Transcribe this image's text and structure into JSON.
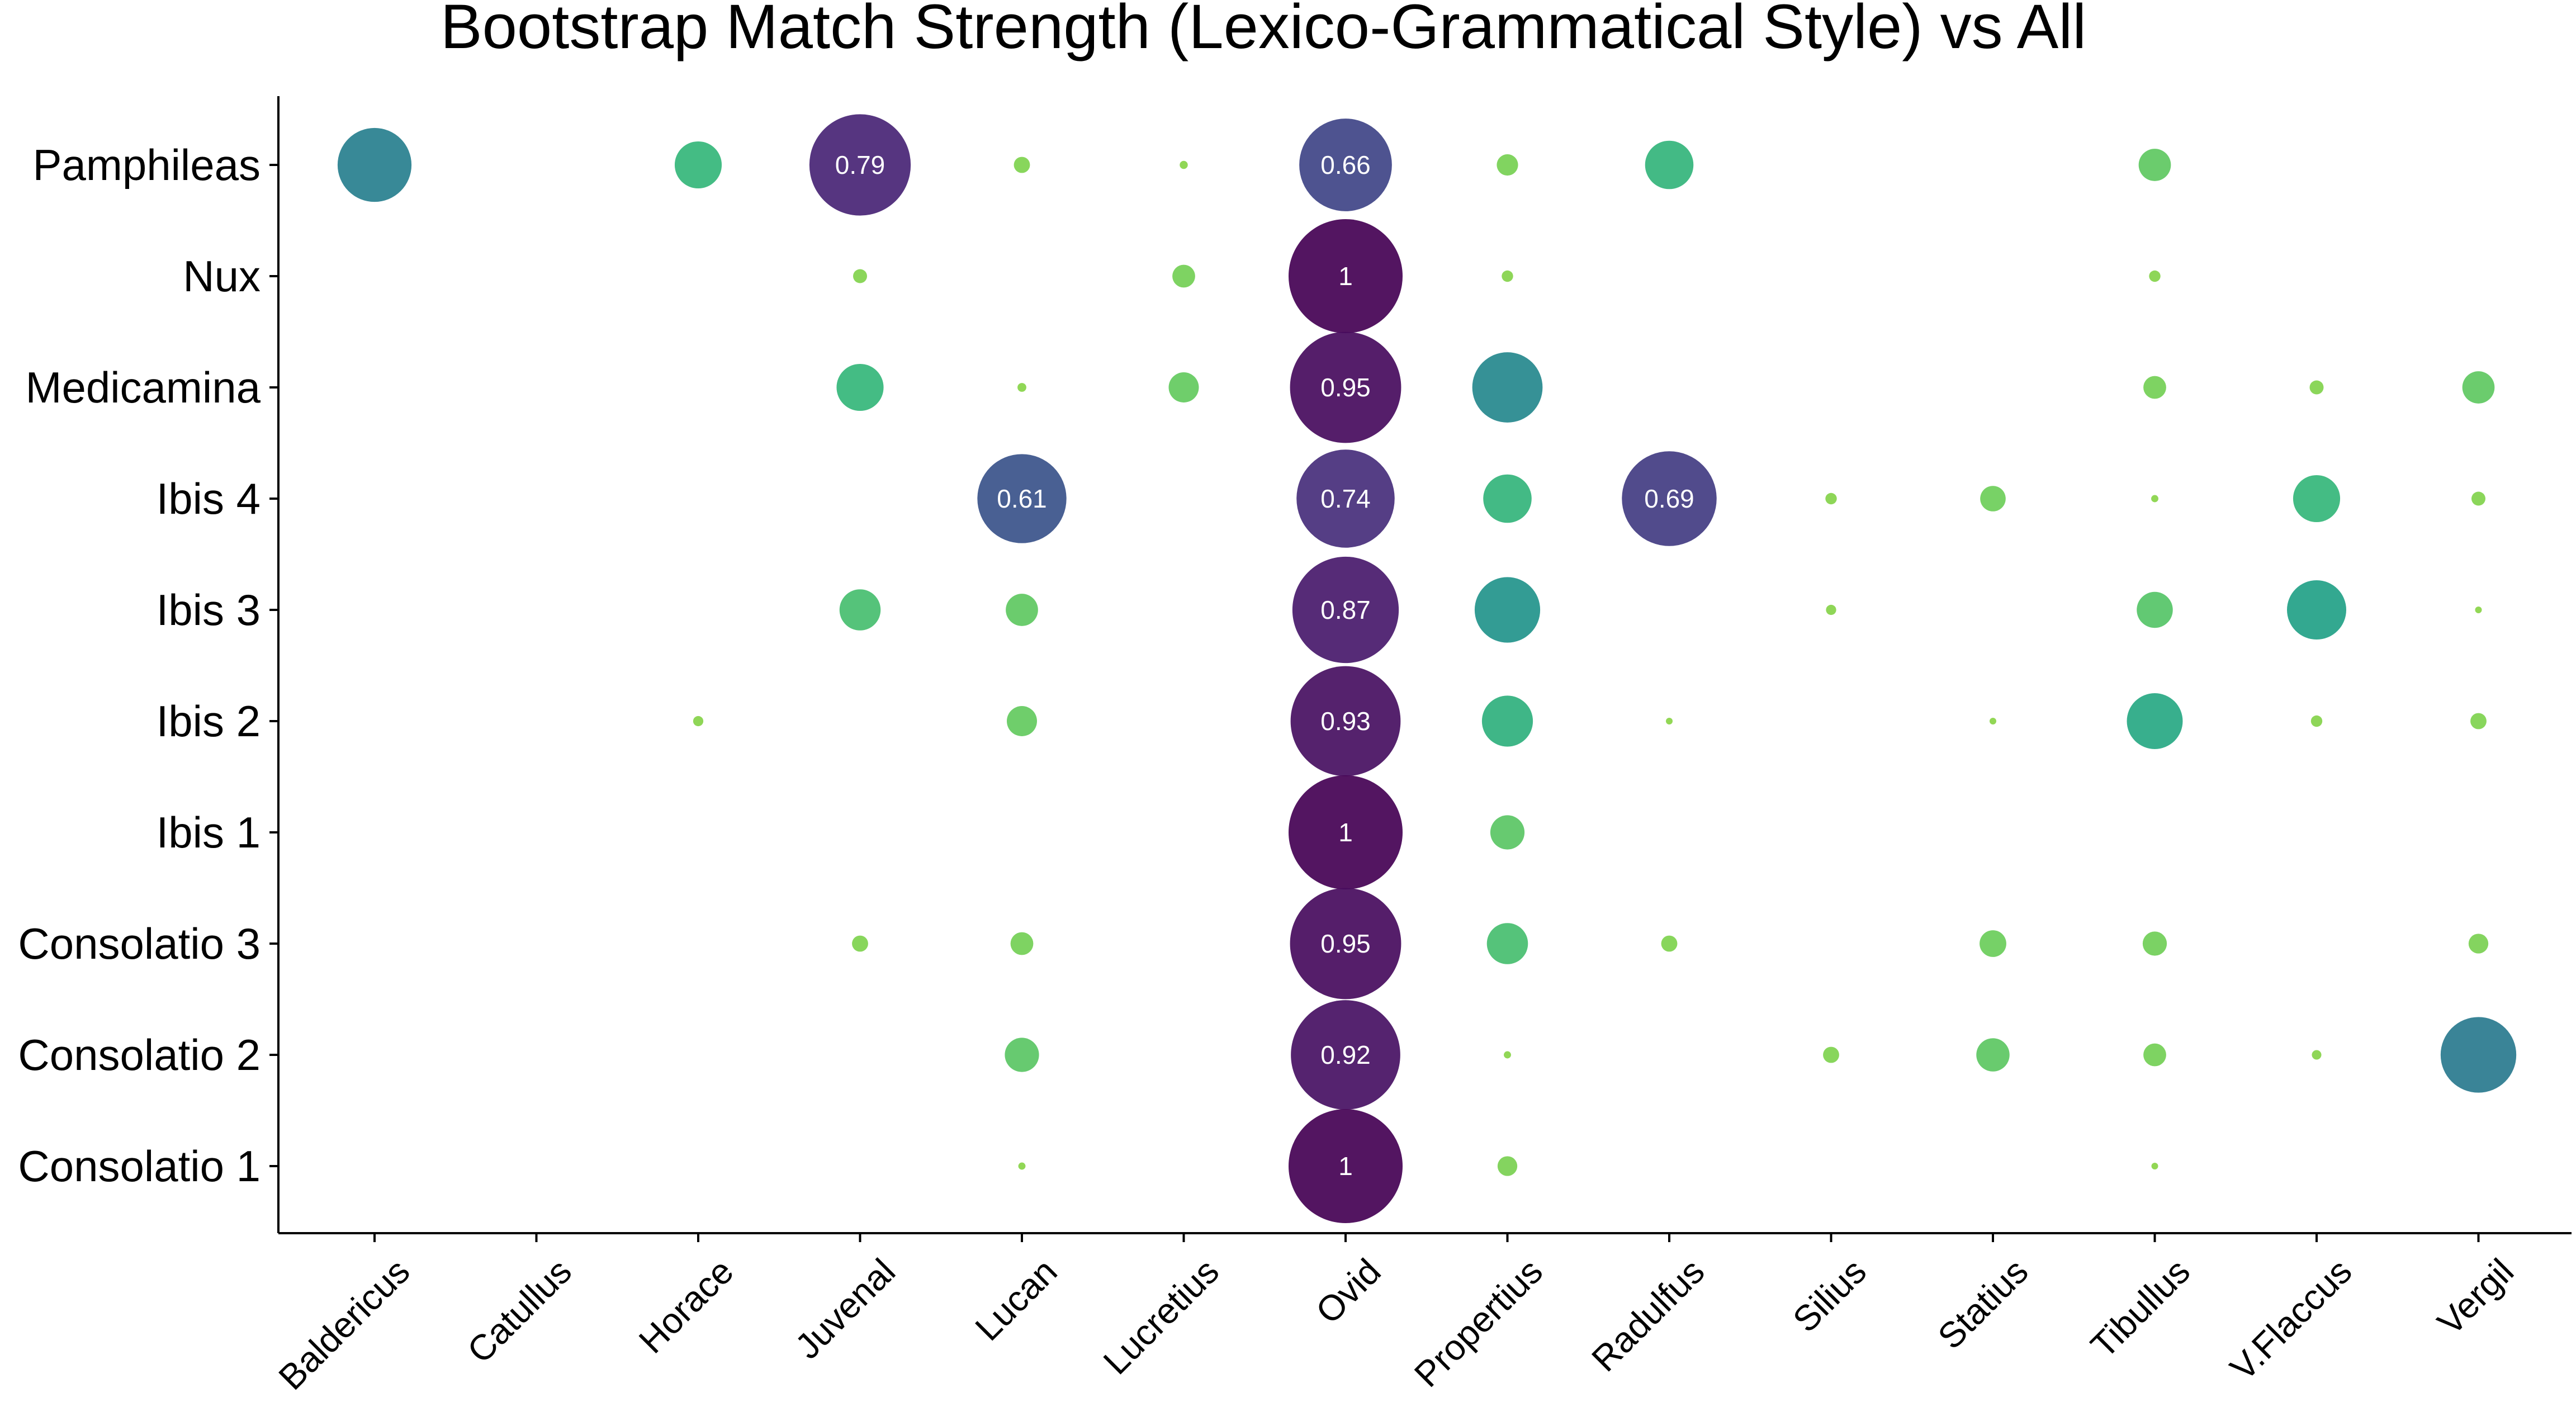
{
  "chart_data": {
    "type": "scatter",
    "subtype": "bubble",
    "title": "Bootstrap Match Strength (Lexico-Grammatical Style) vs All",
    "xlabel": "",
    "ylabel": "",
    "x_categories": [
      "Baldericus",
      "Catullus",
      "Horace",
      "Juvenal",
      "Lucan",
      "Lucretius",
      "Ovid",
      "Propertius",
      "Radulfus",
      "Silius",
      "Statius",
      "Tibullus",
      "V.Flaccus",
      "Vergil"
    ],
    "y_categories": [
      "Consolatio 1",
      "Consolatio 2",
      "Consolatio 3",
      "Ibis 1",
      "Ibis 2",
      "Ibis 3",
      "Ibis 4",
      "Medicamina",
      "Nux",
      "Pamphileas"
    ],
    "label_threshold": 0.6,
    "colormap": "viridis_r",
    "grid": false,
    "legend": "none",
    "points": [
      {
        "x": "Baldericus",
        "y": "Pamphileas",
        "value": 0.42
      },
      {
        "x": "Horace",
        "y": "Pamphileas",
        "value": 0.17
      },
      {
        "x": "Juvenal",
        "y": "Pamphileas",
        "value": 0.79
      },
      {
        "x": "Lucan",
        "y": "Pamphileas",
        "value": 0.02
      },
      {
        "x": "Lucretius",
        "y": "Pamphileas",
        "value": 0.005
      },
      {
        "x": "Ovid",
        "y": "Pamphileas",
        "value": 0.66
      },
      {
        "x": "Propertius",
        "y": "Pamphileas",
        "value": 0.035
      },
      {
        "x": "Radulfus",
        "y": "Pamphileas",
        "value": 0.18
      },
      {
        "x": "Tibullus",
        "y": "Pamphileas",
        "value": 0.08
      },
      {
        "x": "Juvenal",
        "y": "Nux",
        "value": 0.015
      },
      {
        "x": "Lucretius",
        "y": "Nux",
        "value": 0.04
      },
      {
        "x": "Ovid",
        "y": "Nux",
        "value": 1
      },
      {
        "x": "Propertius",
        "y": "Nux",
        "value": 0.01
      },
      {
        "x": "Tibullus",
        "y": "Nux",
        "value": 0.01
      },
      {
        "x": "Juvenal",
        "y": "Medicamina",
        "value": 0.17
      },
      {
        "x": "Lucan",
        "y": "Medicamina",
        "value": 0.006
      },
      {
        "x": "Lucretius",
        "y": "Medicamina",
        "value": 0.07
      },
      {
        "x": "Ovid",
        "y": "Medicamina",
        "value": 0.95
      },
      {
        "x": "Propertius",
        "y": "Medicamina",
        "value": 0.38
      },
      {
        "x": "Tibullus",
        "y": "Medicamina",
        "value": 0.04
      },
      {
        "x": "V.Flaccus",
        "y": "Medicamina",
        "value": 0.015
      },
      {
        "x": "Vergil",
        "y": "Medicamina",
        "value": 0.08
      },
      {
        "x": "Lucan",
        "y": "Ibis 4",
        "value": 0.61
      },
      {
        "x": "Ovid",
        "y": "Ibis 4",
        "value": 0.74
      },
      {
        "x": "Propertius",
        "y": "Ibis 4",
        "value": 0.18
      },
      {
        "x": "Radulfus",
        "y": "Ibis 4",
        "value": 0.69
      },
      {
        "x": "Silius",
        "y": "Ibis 4",
        "value": 0.01
      },
      {
        "x": "Statius",
        "y": "Ibis 4",
        "value": 0.05
      },
      {
        "x": "Tibullus",
        "y": "Ibis 4",
        "value": 0.004
      },
      {
        "x": "V.Flaccus",
        "y": "Ibis 4",
        "value": 0.17
      },
      {
        "x": "Vergil",
        "y": "Ibis 4",
        "value": 0.015
      },
      {
        "x": "Juvenal",
        "y": "Ibis 3",
        "value": 0.13
      },
      {
        "x": "Lucan",
        "y": "Ibis 3",
        "value": 0.08
      },
      {
        "x": "Ovid",
        "y": "Ibis 3",
        "value": 0.87
      },
      {
        "x": "Propertius",
        "y": "Ibis 3",
        "value": 0.33
      },
      {
        "x": "Silius",
        "y": "Ibis 3",
        "value": 0.008
      },
      {
        "x": "Tibullus",
        "y": "Ibis 3",
        "value": 0.1
      },
      {
        "x": "V.Flaccus",
        "y": "Ibis 3",
        "value": 0.27
      },
      {
        "x": "Vergil",
        "y": "Ibis 3",
        "value": 0.002
      },
      {
        "x": "Horace",
        "y": "Ibis 2",
        "value": 0.008
      },
      {
        "x": "Lucan",
        "y": "Ibis 2",
        "value": 0.07
      },
      {
        "x": "Ovid",
        "y": "Ibis 2",
        "value": 0.93
      },
      {
        "x": "Propertius",
        "y": "Ibis 2",
        "value": 0.2
      },
      {
        "x": "Radulfus",
        "y": "Ibis 2",
        "value": 0.003
      },
      {
        "x": "Statius",
        "y": "Ibis 2",
        "value": 0.003
      },
      {
        "x": "Tibullus",
        "y": "Ibis 2",
        "value": 0.24
      },
      {
        "x": "V.Flaccus",
        "y": "Ibis 2",
        "value": 0.01
      },
      {
        "x": "Vergil",
        "y": "Ibis 2",
        "value": 0.02
      },
      {
        "x": "Ovid",
        "y": "Ibis 1",
        "value": 1
      },
      {
        "x": "Propertius",
        "y": "Ibis 1",
        "value": 0.09
      },
      {
        "x": "Juvenal",
        "y": "Consolatio 3",
        "value": 0.02
      },
      {
        "x": "Lucan",
        "y": "Consolatio 3",
        "value": 0.04
      },
      {
        "x": "Ovid",
        "y": "Consolatio 3",
        "value": 0.95
      },
      {
        "x": "Propertius",
        "y": "Consolatio 3",
        "value": 0.13
      },
      {
        "x": "Radulfus",
        "y": "Consolatio 3",
        "value": 0.02
      },
      {
        "x": "Statius",
        "y": "Consolatio 3",
        "value": 0.055
      },
      {
        "x": "Tibullus",
        "y": "Consolatio 3",
        "value": 0.045
      },
      {
        "x": "Vergil",
        "y": "Consolatio 3",
        "value": 0.03
      },
      {
        "x": "Lucan",
        "y": "Consolatio 2",
        "value": 0.09
      },
      {
        "x": "Ovid",
        "y": "Consolatio 2",
        "value": 0.92
      },
      {
        "x": "Propertius",
        "y": "Consolatio 2",
        "value": 0.004
      },
      {
        "x": "Silius",
        "y": "Consolatio 2",
        "value": 0.02
      },
      {
        "x": "Statius",
        "y": "Consolatio 2",
        "value": 0.085
      },
      {
        "x": "Tibullus",
        "y": "Consolatio 2",
        "value": 0.04
      },
      {
        "x": "V.Flaccus",
        "y": "Consolatio 2",
        "value": 0.007
      },
      {
        "x": "Vergil",
        "y": "Consolatio 2",
        "value": 0.44
      },
      {
        "x": "Lucan",
        "y": "Consolatio 1",
        "value": 0.004
      },
      {
        "x": "Ovid",
        "y": "Consolatio 1",
        "value": 1
      },
      {
        "x": "Propertius",
        "y": "Consolatio 1",
        "value": 0.03
      },
      {
        "x": "Tibullus",
        "y": "Consolatio 1",
        "value": 0.003
      }
    ]
  }
}
